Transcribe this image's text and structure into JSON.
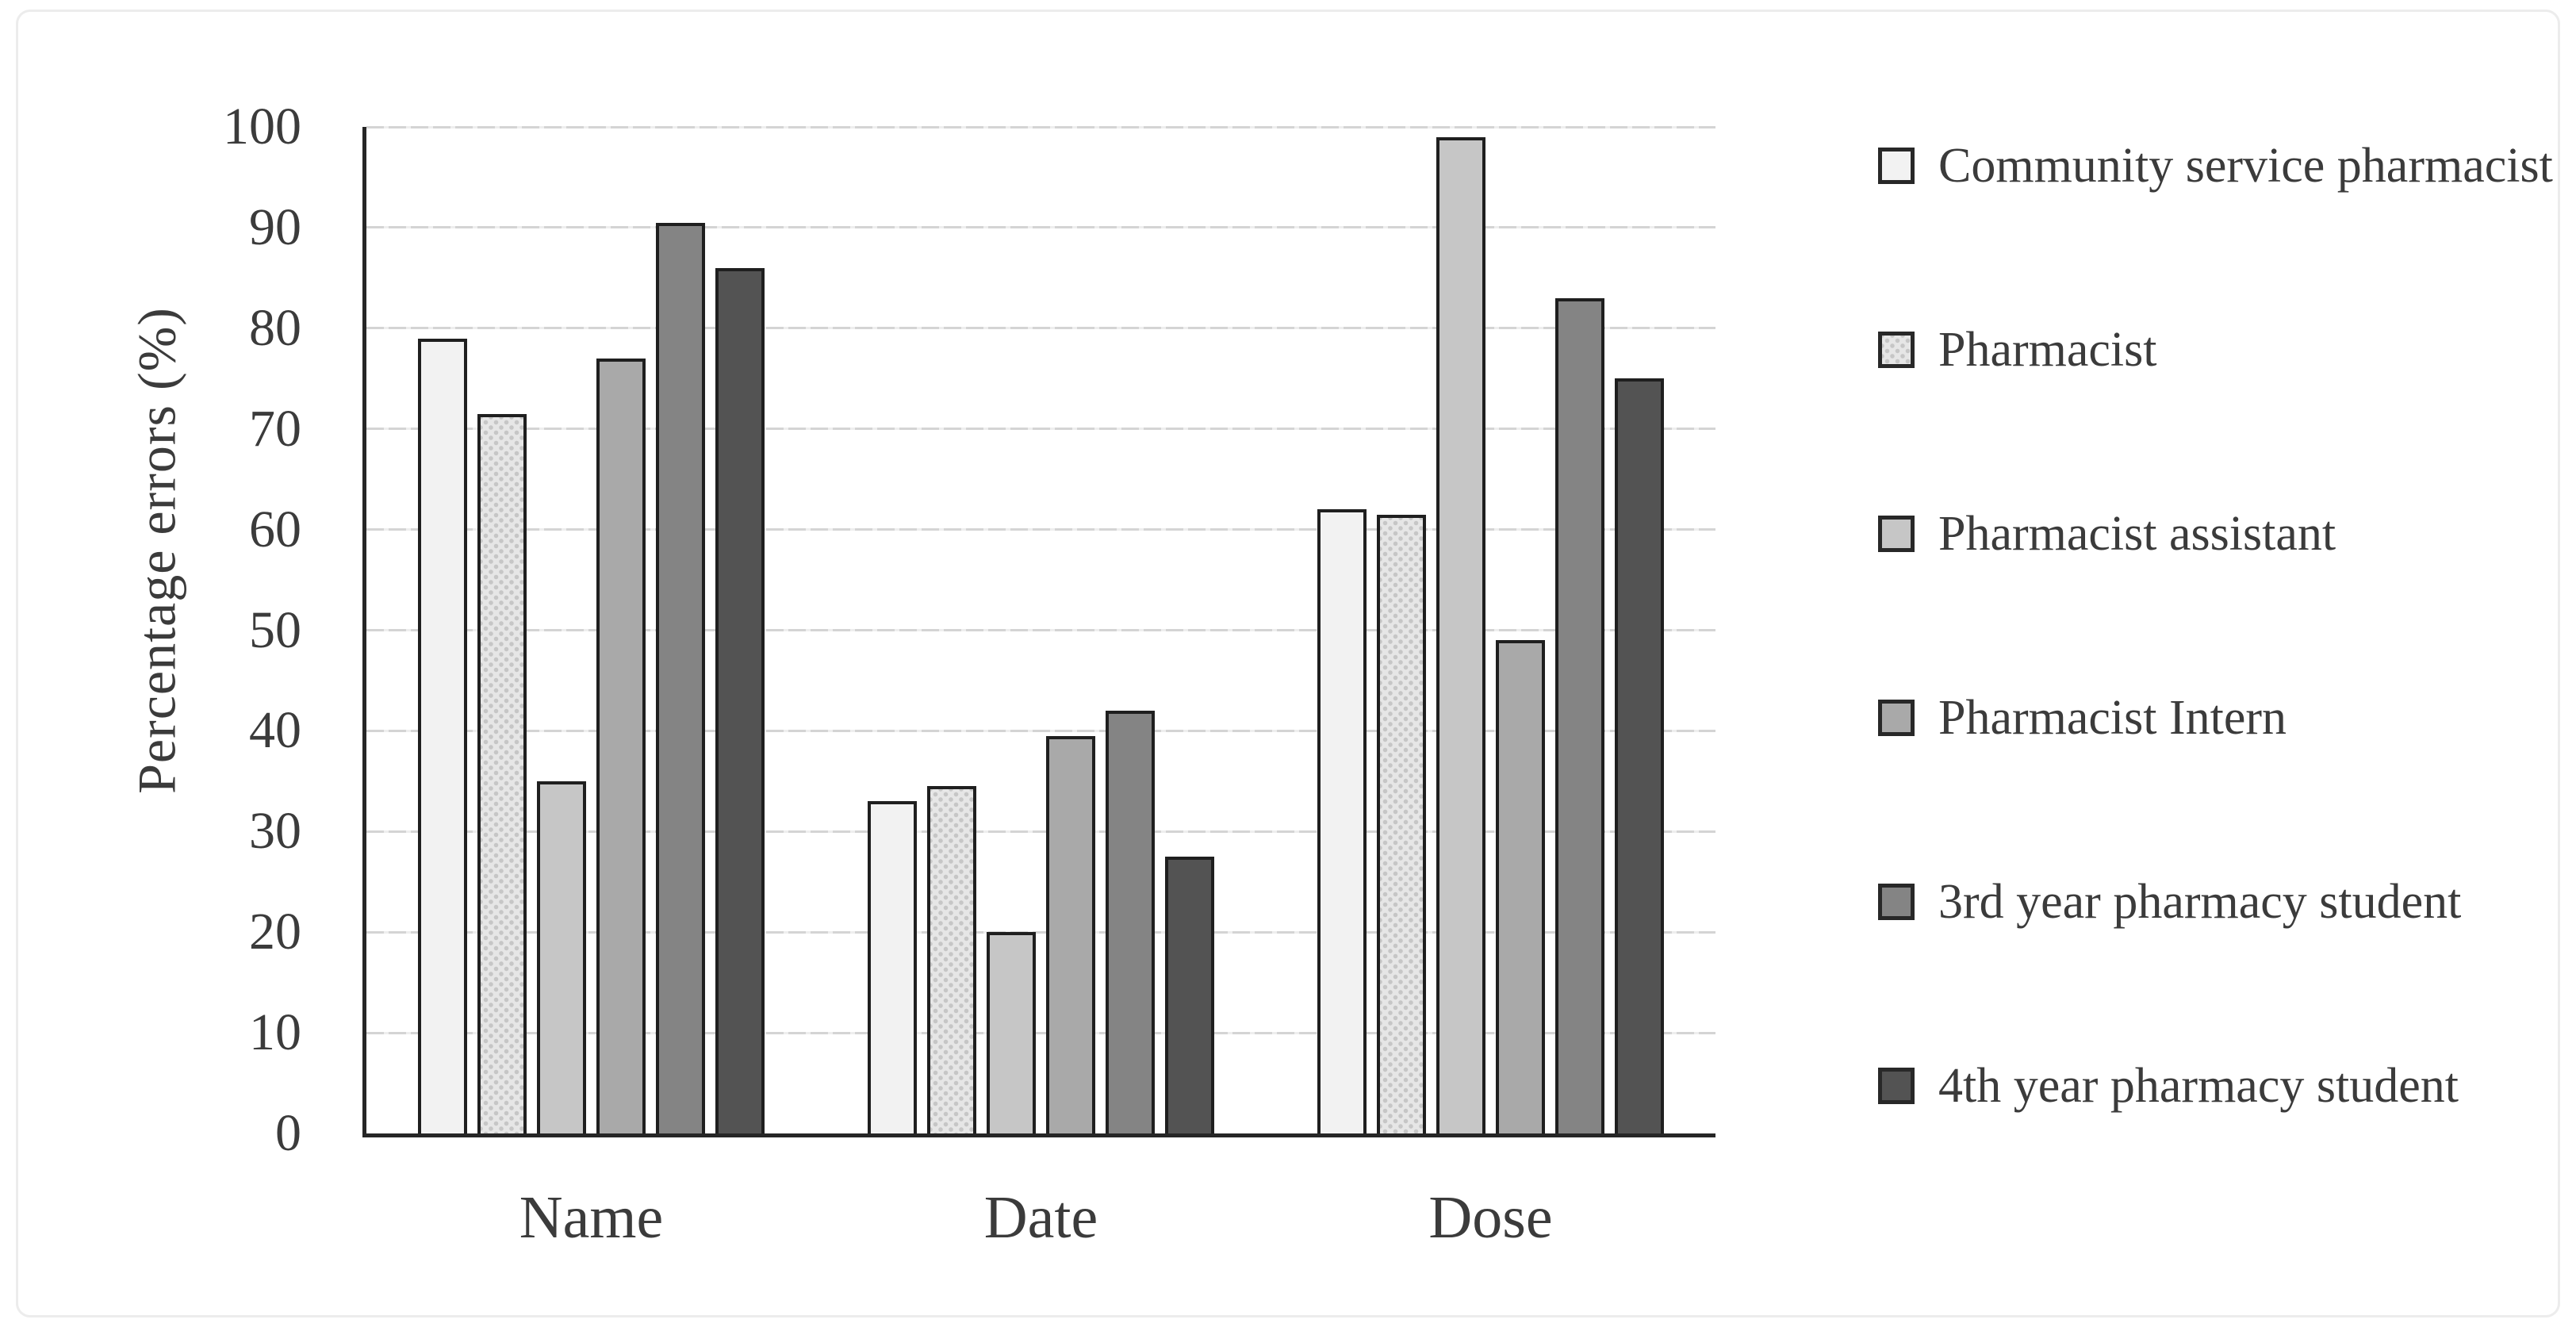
{
  "figure": {
    "background": "#ffffff",
    "frame_color": "#ececec"
  },
  "chart_data": {
    "type": "bar",
    "title": "",
    "categories": [
      "Name",
      "Date",
      "Dose"
    ],
    "series": [
      {
        "name": "Community service pharmacist",
        "color": "#f2f2f2",
        "pattern": "solid",
        "values": [
          79,
          33,
          62
        ]
      },
      {
        "name": "Pharmacist",
        "color": "#e6e6e6",
        "pattern": "dots",
        "dot_color": "#c6c6c6",
        "values": [
          71.5,
          34.5,
          61.5
        ]
      },
      {
        "name": "Pharmacist assistant",
        "color": "#c6c6c6",
        "pattern": "solid",
        "values": [
          35,
          20,
          99
        ]
      },
      {
        "name": "Pharmacist Intern",
        "color": "#a9a9a9",
        "pattern": "solid",
        "values": [
          77,
          39.5,
          49
        ]
      },
      {
        "name": "3rd year pharmacy student",
        "color": "#848484",
        "pattern": "solid",
        "values": [
          90.5,
          42,
          83
        ]
      },
      {
        "name": "4th year pharmacy student",
        "color": "#535353",
        "pattern": "solid",
        "values": [
          86,
          27.5,
          75
        ]
      }
    ],
    "xlabel": "",
    "ylabel": "Percentage errors (%)",
    "ylim": [
      0,
      100
    ],
    "yticks": [
      0,
      10,
      20,
      30,
      40,
      50,
      60,
      70,
      80,
      90,
      100
    ],
    "grid": "horizontal-dashed",
    "legend_position": "right",
    "bar_border_color": "#1f1f1f",
    "axis_color": "#262626",
    "gridline_color": "#d4d4d4",
    "text_color": "#3b3b3b"
  }
}
